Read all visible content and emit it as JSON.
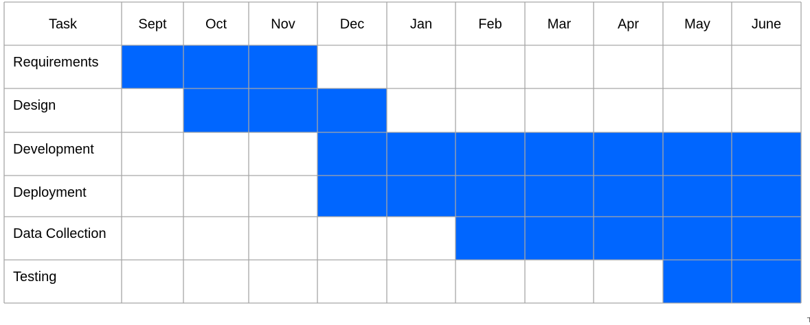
{
  "chart_data": {
    "type": "table",
    "header": "Task",
    "months": [
      "Sept",
      "Oct",
      "Nov",
      "Dec",
      "Jan",
      "Feb",
      "Mar",
      "Apr",
      "May",
      "June"
    ],
    "tasks": [
      {
        "name": "Requirements",
        "start": "Sept",
        "end": "Nov"
      },
      {
        "name": "Design",
        "start": "Oct",
        "end": "Dec"
      },
      {
        "name": "Development",
        "start": "Dec",
        "end": "June"
      },
      {
        "name": "Deployment",
        "start": "Dec",
        "end": "June"
      },
      {
        "name": "Data Collection",
        "start": "Feb",
        "end": "June"
      },
      {
        "name": "Testing",
        "start": "May",
        "end": "June"
      }
    ],
    "bar_color": "#0066ff",
    "grid_color": "#a6a6a6",
    "grid": true
  },
  "stray_mark": "⊤"
}
